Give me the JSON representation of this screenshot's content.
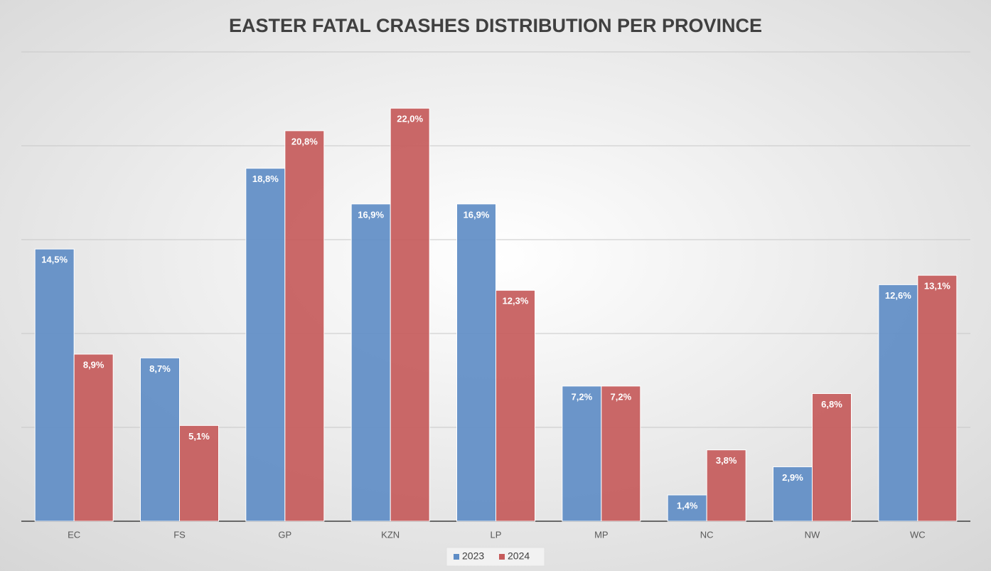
{
  "chart_data": {
    "type": "bar",
    "title": "EASTER FATAL CRASHES DISTRIBUTION PER PROVINCE",
    "categories": [
      "EC",
      "FS",
      "GP",
      "KZN",
      "LP",
      "MP",
      "NC",
      "NW",
      "WC"
    ],
    "series": [
      {
        "name": "2023",
        "color": "#5f8dc6",
        "values": [
          14.5,
          8.7,
          18.8,
          16.9,
          16.9,
          7.2,
          1.4,
          2.9,
          12.6
        ],
        "value_labels": [
          "14,5%",
          "8,7%",
          "18,8%",
          "16,9%",
          "16,9%",
          "7,2%",
          "1,4%",
          "2,9%",
          "12,6%"
        ]
      },
      {
        "name": "2024",
        "color": "#c65b5b",
        "values": [
          8.9,
          5.1,
          20.8,
          22.0,
          12.3,
          7.2,
          3.8,
          6.8,
          13.1
        ],
        "value_labels": [
          "8,9%",
          "5,1%",
          "20,8%",
          "22,0%",
          "12,3%",
          "7,2%",
          "3,8%",
          "6,8%",
          "13,1%"
        ]
      }
    ],
    "ylim": [
      0,
      25
    ],
    "yticks": [
      0,
      5,
      10,
      15,
      20,
      25
    ],
    "grid": true,
    "legend": "bottom"
  }
}
